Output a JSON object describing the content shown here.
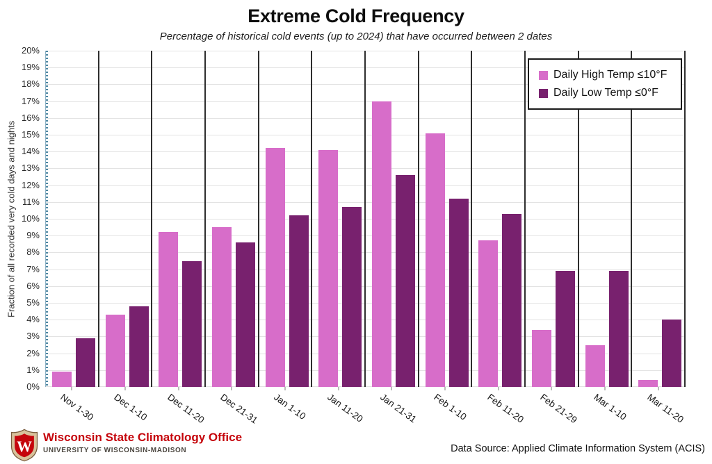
{
  "chart_data": {
    "type": "bar",
    "title": "Extreme Cold Frequency",
    "subtitle": "Percentage of historical cold events (up to 2024) that have occurred between 2 dates",
    "categories": [
      "Nov 1-30",
      "Dec 1-10",
      "Dec 11-20",
      "Dec 21-31",
      "Jan 1-10",
      "Jan 11-20",
      "Jan 21-31",
      "Feb 1-10",
      "Feb 11-20",
      "Feb 21-29",
      "Mar 1-10",
      "Mar 11-20"
    ],
    "series": [
      {
        "name": "Daily High Temp ≤10°F",
        "color": "#d76dc9",
        "values": [
          0.9,
          4.3,
          9.2,
          9.5,
          14.2,
          14.1,
          17.0,
          15.1,
          8.7,
          3.4,
          2.5,
          0.4
        ]
      },
      {
        "name": "Daily Low Temp ≤0°F",
        "color": "#78216e",
        "values": [
          2.9,
          4.8,
          7.5,
          8.6,
          10.2,
          10.7,
          12.6,
          11.2,
          10.3,
          6.9,
          6.9,
          4.0
        ]
      }
    ],
    "xlabel": "",
    "ylabel": "Fraction of all recorded very cold days and nights",
    "ylim": [
      0,
      20
    ],
    "ytick_labels": [
      "0%",
      "1%",
      "2%",
      "3%",
      "4%",
      "5%",
      "6%",
      "7%",
      "8%",
      "9%",
      "10%",
      "11%",
      "12%",
      "13%",
      "14%",
      "15%",
      "16%",
      "17%",
      "18%",
      "19%",
      "20%"
    ],
    "grid": "horizontal-light",
    "group_separators": true,
    "legend_position": "top-right"
  },
  "colors": {
    "bar_high": "#d76dc9",
    "bar_low": "#78216e",
    "separator": "#2e2e2e",
    "gridline": "#e3e3e3",
    "y_axis_line": "#4e87a2",
    "uw_red": "#c5050c"
  },
  "footer": {
    "logo_letter": "W",
    "org_name": "Wisconsin State Climatology Office",
    "org_sub": "UNIVERSITY OF WISCONSIN-MADISON",
    "data_source": "Data Source: Applied Climate Information System (ACIS)"
  }
}
